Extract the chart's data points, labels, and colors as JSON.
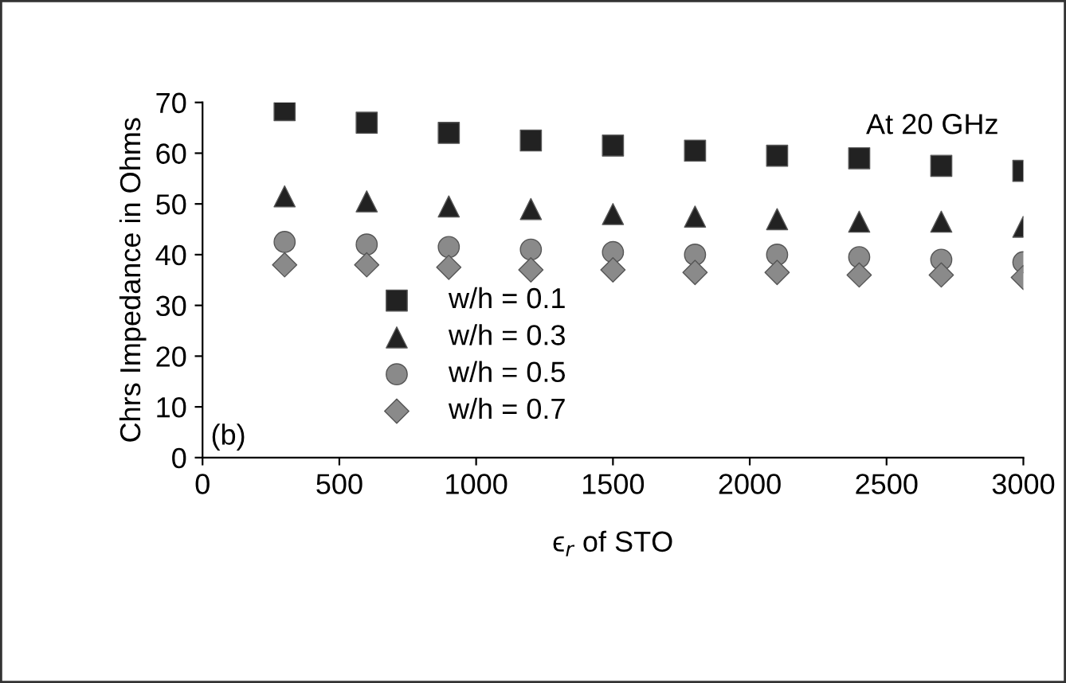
{
  "chart_data": {
    "type": "scatter",
    "xlabel": "ϵ$_{r}$ of STO",
    "ylabel": "Chrs Impedance in Ohms",
    "x": [
      300,
      600,
      900,
      1200,
      1500,
      1800,
      2100,
      2400,
      2700,
      3000
    ],
    "series": [
      {
        "name": "w/h = 0.1",
        "color": "#222222",
        "marker": "square",
        "values": [
          68.5,
          66,
          64,
          62.5,
          61.5,
          60.5,
          59.5,
          59,
          57.5,
          56.5
        ]
      },
      {
        "name": "w/h = 0.3",
        "color": "#222222",
        "marker": "triangle",
        "values": [
          51.5,
          50.5,
          49.5,
          49,
          48,
          47.5,
          47,
          46.5,
          46.5,
          45.5
        ]
      },
      {
        "name": "w/h = 0.5",
        "color": "#8a8a8a",
        "marker": "circle",
        "values": [
          42.5,
          42,
          41.5,
          41,
          40.5,
          40,
          40,
          39.5,
          39,
          38.5
        ]
      },
      {
        "name": "w/h = 0.7",
        "color": "#8a8a8a",
        "marker": "diamond",
        "values": [
          38,
          38,
          37.5,
          37,
          37,
          36.5,
          36.5,
          36,
          36,
          35.5
        ]
      }
    ],
    "xlim": [
      0,
      3000
    ],
    "ylim": [
      0,
      70
    ],
    "xticks": [
      0,
      500,
      1000,
      1500,
      2000,
      2500,
      3000
    ],
    "yticks": [
      0,
      10,
      20,
      30,
      40,
      50,
      60,
      70
    ],
    "annotations": [
      "At 20 GHz",
      "(b)"
    ],
    "legend": "bottom left",
    "grid": false
  }
}
